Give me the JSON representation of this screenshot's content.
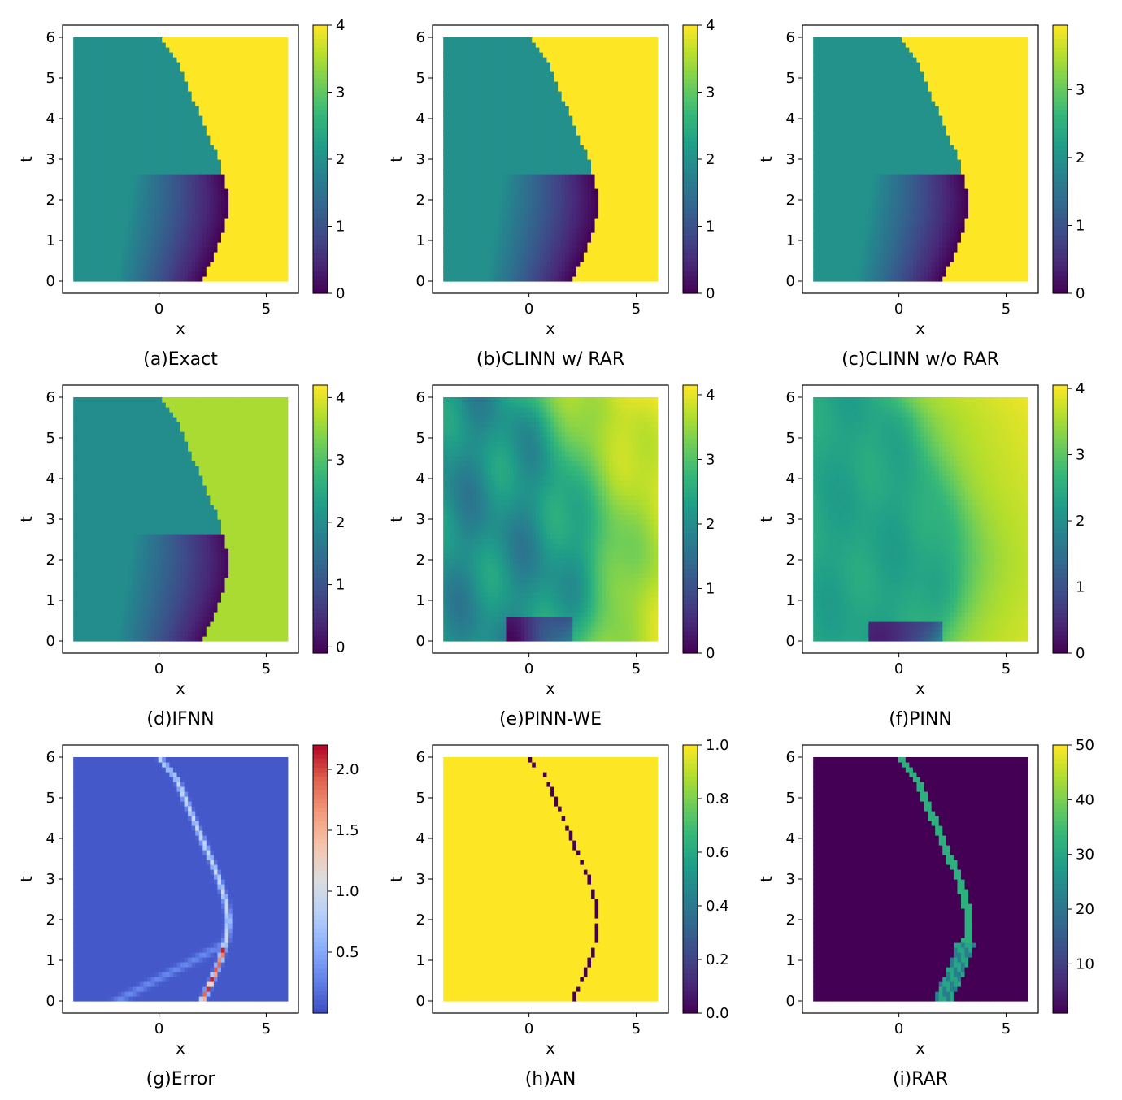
{
  "panels": [
    {
      "caption": "(a)Exact",
      "pattern": "exact",
      "colormap": "viridis",
      "vmin": 0,
      "vmax": 4,
      "cbar_ticks": [
        "0",
        "1",
        "2",
        "3",
        "4"
      ],
      "cbar_tick_values": [
        0,
        1,
        2,
        3,
        4
      ]
    },
    {
      "caption": "(b)CLINN w/ RAR",
      "pattern": "exact",
      "colormap": "viridis",
      "vmin": 0,
      "vmax": 4,
      "cbar_ticks": [
        "0",
        "1",
        "2",
        "3",
        "4"
      ],
      "cbar_tick_values": [
        0,
        1,
        2,
        3,
        4
      ]
    },
    {
      "caption": "(c)CLINN w/o RAR",
      "pattern": "exact",
      "colormap": "viridis",
      "vmin": 0,
      "vmax": 3.95,
      "cbar_ticks": [
        "0",
        "1",
        "2",
        "3"
      ],
      "cbar_tick_values": [
        0,
        1,
        2,
        3
      ]
    },
    {
      "caption": "(d)IFNN",
      "pattern": "ifnn",
      "colormap": "viridis",
      "vmin": -0.1,
      "vmax": 4.2,
      "cbar_ticks": [
        "0",
        "1",
        "2",
        "3",
        "4"
      ],
      "cbar_tick_values": [
        0,
        1,
        2,
        3,
        4
      ]
    },
    {
      "caption": "(e)PINN-WE",
      "pattern": "pinnwe",
      "colormap": "viridis",
      "vmin": 0,
      "vmax": 4.15,
      "cbar_ticks": [
        "0",
        "1",
        "2",
        "3",
        "4"
      ],
      "cbar_tick_values": [
        0,
        1,
        2,
        3,
        4
      ]
    },
    {
      "caption": "(f)PINN",
      "pattern": "pinn",
      "colormap": "viridis",
      "vmin": 0,
      "vmax": 4.05,
      "cbar_ticks": [
        "0",
        "1",
        "2",
        "3",
        "4"
      ],
      "cbar_tick_values": [
        0,
        1,
        2,
        3,
        4
      ]
    },
    {
      "caption": "(g)Error",
      "pattern": "error",
      "colormap": "coolwarm",
      "vmin": 0,
      "vmax": 2.2,
      "cbar_ticks": [
        "0.5",
        "1.0",
        "1.5",
        "2.0"
      ],
      "cbar_tick_values": [
        0.5,
        1.0,
        1.5,
        2.0
      ]
    },
    {
      "caption": "(h)AN",
      "pattern": "an",
      "colormap": "viridis",
      "vmin": 0,
      "vmax": 1,
      "cbar_ticks": [
        "0.0",
        "0.2",
        "0.4",
        "0.6",
        "0.8",
        "1.0"
      ],
      "cbar_tick_values": [
        0,
        0.2,
        0.4,
        0.6,
        0.8,
        1.0
      ]
    },
    {
      "caption": "(i)RAR",
      "pattern": "rar",
      "colormap": "viridis",
      "vmin": 1,
      "vmax": 50,
      "cbar_ticks": [
        "10",
        "20",
        "30",
        "40",
        "50"
      ],
      "cbar_tick_values": [
        10,
        20,
        30,
        40,
        50
      ]
    }
  ],
  "chart_data": {
    "type": "heatmap",
    "xlabel": "x",
    "ylabel": "t",
    "xlim": [
      -4.5,
      6.5
    ],
    "ylim": [
      -0.3,
      6.3
    ],
    "x_ticks": [
      "0",
      "5"
    ],
    "x_tick_values": [
      0,
      5
    ],
    "y_ticks": [
      "0",
      "1",
      "2",
      "3",
      "4",
      "5",
      "6"
    ],
    "y_tick_values": [
      0,
      1,
      2,
      3,
      4,
      5,
      6
    ],
    "domain": {
      "x": [
        -4,
        6
      ],
      "t": [
        0,
        6
      ]
    },
    "shock_front": {
      "t": [
        0,
        0.5,
        1,
        1.5,
        2,
        2.5,
        3,
        3.5,
        4,
        4.5,
        5,
        5.5,
        6
      ],
      "x": [
        2.0,
        2.45,
        2.85,
        3.15,
        3.25,
        3.1,
        2.8,
        2.4,
        2.0,
        1.6,
        1.2,
        0.8,
        0.0
      ]
    }
  }
}
